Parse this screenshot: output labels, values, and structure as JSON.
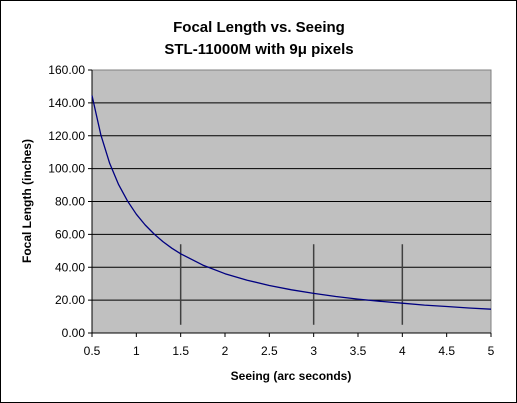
{
  "chart_data": {
    "type": "line",
    "title": [
      "Focal Length vs. Seeing",
      "STL-11000M with 9μ pixels"
    ],
    "xlabel": "Seeing (arc seconds)",
    "ylabel": "Focal Length (inches)",
    "xlim": [
      0.5,
      5
    ],
    "ylim": [
      0,
      160
    ],
    "x_ticks": [
      "0.5",
      "1",
      "1.5",
      "2",
      "2.5",
      "3",
      "3.5",
      "4",
      "4.5",
      "5"
    ],
    "y_ticks": [
      "0.00",
      "20.00",
      "40.00",
      "60.00",
      "80.00",
      "100.00",
      "120.00",
      "140.00",
      "160.00"
    ],
    "grid": "horizontal",
    "legend": "none",
    "plot_background": "#c0c0c0",
    "series": [
      {
        "color": "#000080",
        "x": [
          0.5,
          0.6,
          0.7,
          0.8,
          0.9,
          1.0,
          1.1,
          1.2,
          1.3,
          1.4,
          1.5,
          1.75,
          2.0,
          2.25,
          2.5,
          2.75,
          3.0,
          3.25,
          3.5,
          3.75,
          4.0,
          4.25,
          4.5,
          4.75,
          5.0
        ],
        "y": [
          144.5,
          120.4,
          103.2,
          90.3,
          80.3,
          72.3,
          65.7,
          60.2,
          55.6,
          51.6,
          48.2,
          41.3,
          36.1,
          32.1,
          28.9,
          26.3,
          24.1,
          22.2,
          20.6,
          19.3,
          18.1,
          17.0,
          16.1,
          15.2,
          14.5
        ]
      }
    ],
    "reference_lines": {
      "color": "#404040",
      "x": [
        1.5,
        3.0,
        4.0
      ],
      "y_range": [
        5,
        54
      ]
    }
  }
}
